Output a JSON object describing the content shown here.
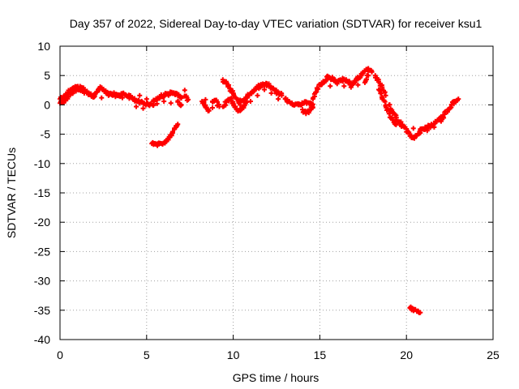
{
  "chart_data": {
    "type": "scatter",
    "title": "Day 357 of 2022, Sidereal Day-to-day VTEC variation (SDTVAR) for receiver ksu1",
    "xlabel": "GPS time / hours",
    "ylabel": "SDTVAR / TECUs",
    "xlim": [
      0,
      25
    ],
    "ylim": [
      -40,
      10
    ],
    "xticks": [
      0,
      5,
      10,
      15,
      20,
      25
    ],
    "yticks": [
      10,
      5,
      0,
      -5,
      -10,
      -15,
      -20,
      -25,
      -30,
      -35,
      -40
    ],
    "grid": true,
    "marker": "plus",
    "color": "#ff0000",
    "series": [
      {
        "name": "SDTVAR",
        "points": [
          [
            0.0,
            1.0
          ],
          [
            0.2,
            1.4
          ],
          [
            0.4,
            1.8
          ],
          [
            0.6,
            2.5
          ],
          [
            0.8,
            2.9
          ],
          [
            1.0,
            3.1
          ],
          [
            1.2,
            3.0
          ],
          [
            1.4,
            2.6
          ],
          [
            1.6,
            2.0
          ],
          [
            1.8,
            1.6
          ],
          [
            2.0,
            1.5
          ],
          [
            0.0,
            0.3
          ],
          [
            0.2,
            0.5
          ],
          [
            0.4,
            1.1
          ],
          [
            0.6,
            1.8
          ],
          [
            0.8,
            2.4
          ],
          [
            1.0,
            2.6
          ],
          [
            1.2,
            2.4
          ],
          [
            1.4,
            2.0
          ],
          [
            2.0,
            1.8
          ],
          [
            2.2,
            2.6
          ],
          [
            2.4,
            2.9
          ],
          [
            2.6,
            2.4
          ],
          [
            2.8,
            2.0
          ],
          [
            3.0,
            1.9
          ],
          [
            3.2,
            1.8
          ],
          [
            3.4,
            1.6
          ],
          [
            3.6,
            1.8
          ],
          [
            3.8,
            1.7
          ],
          [
            4.0,
            1.6
          ],
          [
            2.4,
            1.2
          ],
          [
            2.8,
            1.6
          ],
          [
            3.2,
            1.4
          ],
          [
            3.6,
            1.2
          ],
          [
            4.0,
            1.1
          ],
          [
            4.0,
            1.5
          ],
          [
            4.2,
            1.0
          ],
          [
            4.4,
            0.7
          ],
          [
            4.6,
            0.4
          ],
          [
            4.8,
            0.3
          ],
          [
            5.0,
            0.2
          ],
          [
            5.2,
            0.1
          ],
          [
            5.4,
            0.0
          ],
          [
            4.4,
            -0.3
          ],
          [
            4.8,
            -0.6
          ],
          [
            4.6,
            1.6
          ],
          [
            5.0,
            1.0
          ],
          [
            5.4,
            0.6
          ],
          [
            5.4,
            0.8
          ],
          [
            5.6,
            1.0
          ],
          [
            5.8,
            1.4
          ],
          [
            6.0,
            1.7
          ],
          [
            6.2,
            1.8
          ],
          [
            6.4,
            2.0
          ],
          [
            6.6,
            1.9
          ],
          [
            6.8,
            1.6
          ],
          [
            7.0,
            1.3
          ],
          [
            5.6,
            0.2
          ],
          [
            6.0,
            0.6
          ],
          [
            6.4,
            0.3
          ],
          [
            6.8,
            0.5
          ],
          [
            7.0,
            0.0
          ],
          [
            7.2,
            2.5
          ],
          [
            7.2,
            1.5
          ],
          [
            7.4,
            0.9
          ],
          [
            5.3,
            -6.6
          ],
          [
            5.5,
            -6.7
          ],
          [
            5.7,
            -6.7
          ],
          [
            5.9,
            -6.6
          ],
          [
            6.1,
            -6.3
          ],
          [
            6.3,
            -5.6
          ],
          [
            6.5,
            -4.8
          ],
          [
            6.7,
            -3.8
          ],
          [
            6.8,
            -3.3
          ],
          [
            8.2,
            0.6
          ],
          [
            8.4,
            -0.4
          ],
          [
            8.6,
            -1.0
          ],
          [
            8.8,
            0.6
          ],
          [
            9.0,
            0.8
          ],
          [
            9.2,
            -0.3
          ],
          [
            8.4,
            0.9
          ],
          [
            8.8,
            -0.5
          ],
          [
            9.4,
            4.3
          ],
          [
            9.6,
            3.6
          ],
          [
            9.8,
            2.8
          ],
          [
            10.0,
            2.0
          ],
          [
            10.2,
            1.0
          ],
          [
            10.4,
            0.0
          ],
          [
            9.4,
            -0.3
          ],
          [
            9.6,
            0.5
          ],
          [
            9.8,
            1.0
          ],
          [
            10.0,
            0.2
          ],
          [
            10.2,
            -0.8
          ],
          [
            10.4,
            -1.0
          ],
          [
            10.6,
            -0.5
          ],
          [
            10.8,
            0.5
          ],
          [
            10.4,
            0.6
          ],
          [
            10.6,
            0.8
          ],
          [
            10.8,
            1.3
          ],
          [
            11.0,
            2.0
          ],
          [
            11.2,
            2.6
          ],
          [
            11.4,
            3.0
          ],
          [
            11.6,
            3.3
          ],
          [
            11.8,
            3.5
          ],
          [
            12.0,
            3.4
          ],
          [
            12.2,
            3.0
          ],
          [
            12.4,
            2.4
          ],
          [
            12.6,
            2.0
          ],
          [
            12.8,
            1.6
          ],
          [
            10.6,
            -0.3
          ],
          [
            11.0,
            0.6
          ],
          [
            11.4,
            1.6
          ],
          [
            11.8,
            2.6
          ],
          [
            12.2,
            2.0
          ],
          [
            12.6,
            1.0
          ],
          [
            13.0,
            1.0
          ],
          [
            13.2,
            0.6
          ],
          [
            13.4,
            0.3
          ],
          [
            13.6,
            0.1
          ],
          [
            13.8,
            0.0
          ],
          [
            14.0,
            0.2
          ],
          [
            14.2,
            0.5
          ],
          [
            14.4,
            0.2
          ],
          [
            14.6,
            0.1
          ],
          [
            14.0,
            -0.8
          ],
          [
            14.2,
            -1.5
          ],
          [
            14.4,
            -1.0
          ],
          [
            14.6,
            -0.4
          ],
          [
            14.6,
            1.0
          ],
          [
            14.8,
            2.2
          ],
          [
            15.0,
            3.5
          ],
          [
            15.2,
            3.9
          ],
          [
            15.4,
            4.3
          ],
          [
            15.4,
            4.8
          ],
          [
            15.6,
            4.6
          ],
          [
            15.8,
            4.2
          ],
          [
            16.0,
            4.0
          ],
          [
            16.2,
            4.1
          ],
          [
            16.4,
            4.4
          ],
          [
            16.6,
            4.0
          ],
          [
            16.8,
            3.6
          ],
          [
            17.0,
            4.0
          ],
          [
            17.2,
            4.6
          ],
          [
            17.4,
            5.0
          ],
          [
            17.6,
            5.7
          ],
          [
            17.8,
            6.2
          ],
          [
            18.0,
            5.6
          ],
          [
            15.6,
            3.2
          ],
          [
            16.0,
            3.6
          ],
          [
            16.4,
            3.2
          ],
          [
            16.8,
            3.0
          ],
          [
            17.2,
            3.4
          ],
          [
            17.6,
            3.8
          ],
          [
            17.8,
            5.0
          ],
          [
            18.2,
            5.0
          ],
          [
            18.4,
            4.0
          ],
          [
            18.6,
            3.0
          ],
          [
            18.8,
            1.6
          ],
          [
            19.0,
            0.0
          ],
          [
            19.2,
            -1.2
          ],
          [
            19.4,
            -2.2
          ],
          [
            19.6,
            -3.0
          ],
          [
            19.8,
            -3.6
          ],
          [
            20.0,
            -4.1
          ],
          [
            18.4,
            2.6
          ],
          [
            18.6,
            1.2
          ],
          [
            18.8,
            -0.2
          ],
          [
            19.0,
            -1.5
          ],
          [
            19.2,
            -2.6
          ],
          [
            19.4,
            -3.4
          ],
          [
            20.0,
            -4.6
          ],
          [
            20.2,
            -5.0
          ],
          [
            20.4,
            -5.6
          ],
          [
            20.6,
            -5.2
          ],
          [
            20.8,
            -4.4
          ],
          [
            21.0,
            -4.2
          ],
          [
            21.2,
            -3.8
          ],
          [
            21.4,
            -3.6
          ],
          [
            21.6,
            -3.2
          ],
          [
            21.8,
            -2.6
          ],
          [
            22.0,
            -2.0
          ],
          [
            20.4,
            -4.0
          ],
          [
            20.8,
            -4.8
          ],
          [
            21.2,
            -4.4
          ],
          [
            21.6,
            -3.8
          ],
          [
            22.0,
            -2.8
          ],
          [
            22.2,
            -1.6
          ],
          [
            22.4,
            -0.8
          ],
          [
            22.6,
            0.0
          ],
          [
            22.8,
            0.6
          ],
          [
            23.0,
            1.0
          ],
          [
            20.2,
            -34.6
          ],
          [
            20.4,
            -34.8
          ],
          [
            20.6,
            -35.2
          ],
          [
            20.8,
            -35.4
          ]
        ]
      }
    ]
  }
}
